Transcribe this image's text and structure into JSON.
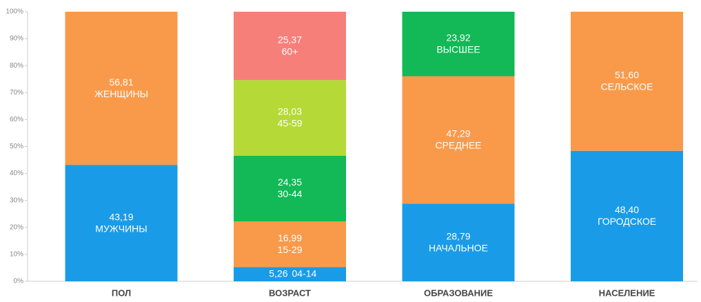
{
  "chart_data": {
    "type": "stacked_bar",
    "categories": [
      "ПОЛ",
      "ВОЗРАСТ",
      "ОБРАЗОВАНИЕ",
      "НАСЕЛЕНИЕ"
    ],
    "stacks": [
      {
        "segments": [
          {
            "name": "МУЖЧИНЫ",
            "value": 43.19,
            "value_label": "43,19",
            "color": "#1a9be8"
          },
          {
            "name": "ЖЕНЩИНЫ",
            "value": 56.81,
            "value_label": "56,81",
            "color": "#f89a4a"
          }
        ]
      },
      {
        "segments": [
          {
            "name": "04-14",
            "value": 5.26,
            "value_label": "5,26",
            "color": "#1a9be8"
          },
          {
            "name": "15-29",
            "value": 16.99,
            "value_label": "16,99",
            "color": "#f89a4a"
          },
          {
            "name": "30-44",
            "value": 24.35,
            "value_label": "24,35",
            "color": "#12b956"
          },
          {
            "name": "45-59",
            "value": 28.03,
            "value_label": "28,03",
            "color": "#b5d936"
          },
          {
            "name": "60+",
            "value": 25.37,
            "value_label": "25,37",
            "color": "#f77f7a"
          }
        ]
      },
      {
        "segments": [
          {
            "name": "НАЧАЛЬНОЕ",
            "value": 28.79,
            "value_label": "28,79",
            "color": "#1a9be8"
          },
          {
            "name": "СРЕДНЕЕ",
            "value": 47.29,
            "value_label": "47,29",
            "color": "#f89a4a"
          },
          {
            "name": "ВЫСШЕЕ",
            "value": 23.92,
            "value_label": "23,92",
            "color": "#12b956"
          }
        ]
      },
      {
        "segments": [
          {
            "name": "ГОРОДСКОЕ",
            "value": 48.4,
            "value_label": "48,40",
            "color": "#1a9be8"
          },
          {
            "name": "СЕЛЬСКОЕ",
            "value": 51.6,
            "value_label": "51,60",
            "color": "#f89a4a"
          }
        ]
      }
    ],
    "ylim": [
      0,
      100
    ],
    "yticks": [
      {
        "value": 0,
        "label": "0%"
      },
      {
        "value": 10,
        "label": "10%"
      },
      {
        "value": 20,
        "label": "20%"
      },
      {
        "value": 30,
        "label": "30%"
      },
      {
        "value": 40,
        "label": "40%"
      },
      {
        "value": 50,
        "label": "50%"
      },
      {
        "value": 60,
        "label": "60%"
      },
      {
        "value": 70,
        "label": "70%"
      },
      {
        "value": 80,
        "label": "80%"
      },
      {
        "value": 90,
        "label": "90%"
      },
      {
        "value": 100,
        "label": "100%"
      }
    ]
  }
}
